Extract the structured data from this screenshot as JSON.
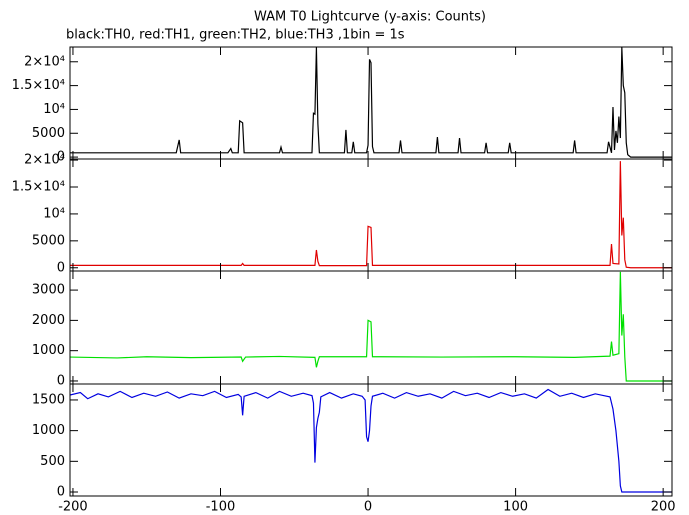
{
  "chart_data": [
    {
      "type": "line",
      "title": "WAM T0 Lightcurve (y-axis: Counts)",
      "subtitle": "black:TH0, red:TH1, green:TH2, blue:TH3 ,1bin = 1s",
      "color": "#000000",
      "x": [
        -202,
        -130,
        -128,
        -127,
        -95,
        -93,
        -92,
        -88,
        -87,
        -85,
        -84,
        -60,
        -59,
        -58,
        -38,
        -37,
        -36,
        -35,
        -34,
        -33,
        -16,
        -15,
        -14,
        -11,
        -10,
        -9,
        -1,
        0,
        1,
        2,
        3,
        4,
        21,
        22,
        23,
        46,
        47,
        48,
        61,
        62,
        63,
        79,
        80,
        81,
        95,
        96,
        97,
        139,
        140,
        141,
        162,
        163,
        165,
        166,
        167,
        168,
        169,
        170,
        171,
        172,
        173,
        174,
        175,
        176,
        178,
        206
      ],
      "values": [
        900,
        900,
        3600,
        900,
        900,
        1800,
        900,
        900,
        7600,
        7200,
        900,
        900,
        2100,
        900,
        900,
        9200,
        9000,
        23000,
        7000,
        900,
        900,
        5700,
        900,
        900,
        3200,
        900,
        900,
        2500,
        20500,
        19800,
        2200,
        900,
        900,
        3500,
        900,
        900,
        4200,
        900,
        900,
        4000,
        900,
        900,
        3000,
        900,
        900,
        3000,
        900,
        900,
        3500,
        900,
        900,
        3200,
        900,
        10500,
        1500,
        5500,
        3000,
        8500,
        4000,
        23000,
        15000,
        13500,
        3000,
        500,
        0,
        0
      ],
      "xlim": [
        -202,
        206
      ],
      "xticks": [
        -200,
        -100,
        0,
        100,
        200
      ],
      "ylim": [
        -400,
        23100
      ],
      "yticks": [
        0,
        5000,
        {
          "value": 10000,
          "label": "10⁴"
        },
        {
          "value": 15000,
          "label": "1.5×10⁴"
        },
        {
          "value": 20000,
          "label": "2×10⁴"
        }
      ]
    },
    {
      "type": "line",
      "color": "#e00000",
      "x": [
        -202,
        -86,
        -85,
        -84,
        -36,
        -35,
        -34,
        -33,
        -1,
        0,
        2,
        3,
        164,
        165,
        166,
        170,
        171,
        172,
        173,
        174,
        175,
        178,
        206
      ],
      "values": [
        450,
        450,
        800,
        450,
        450,
        3300,
        1200,
        400,
        400,
        7700,
        7500,
        450,
        450,
        4400,
        800,
        700,
        19800,
        6000,
        9300,
        1500,
        100,
        0,
        0
      ],
      "xlim": [
        -202,
        206
      ],
      "xticks": [
        -200,
        -100,
        0,
        100,
        200
      ],
      "ylim": [
        -600,
        20200
      ],
      "yticks": [
        0,
        5000,
        {
          "value": 10000,
          "label": "10⁴"
        },
        {
          "value": 15000,
          "label": "1.5×10⁴"
        },
        {
          "value": 20000,
          "label": "2×10⁴"
        }
      ]
    },
    {
      "type": "line",
      "color": "#00e000",
      "x": [
        -202,
        -170,
        -150,
        -120,
        -86,
        -85,
        -84,
        -83,
        -60,
        -36,
        -35,
        -34,
        -33,
        -1,
        0,
        2,
        3,
        50,
        100,
        140,
        164,
        165,
        166,
        170,
        171,
        172,
        173,
        174,
        175,
        206
      ],
      "values": [
        790,
        760,
        800,
        770,
        790,
        650,
        720,
        790,
        810,
        780,
        450,
        650,
        800,
        800,
        2000,
        1950,
        800,
        790,
        800,
        780,
        820,
        1300,
        850,
        900,
        3600,
        1500,
        2200,
        800,
        0,
        0
      ],
      "xlim": [
        -202,
        206
      ],
      "xticks": [
        -200,
        -100,
        0,
        100,
        200
      ],
      "ylim": [
        -100,
        3630
      ],
      "yticks": [
        0,
        1000,
        2000,
        3000
      ]
    },
    {
      "type": "line",
      "color": "#0000e0",
      "x": [
        -202,
        -195,
        -190,
        -183,
        -176,
        -168,
        -160,
        -152,
        -144,
        -136,
        -128,
        -120,
        -112,
        -104,
        -96,
        -88,
        -86,
        -85,
        -84,
        -76,
        -68,
        -60,
        -52,
        -44,
        -38,
        -37,
        -36,
        -35,
        -34,
        -33,
        -32,
        -26,
        -18,
        -10,
        -4,
        -2,
        -1,
        0,
        1,
        2,
        3,
        10,
        18,
        26,
        34,
        42,
        50,
        58,
        66,
        74,
        82,
        90,
        98,
        106,
        114,
        122,
        130,
        138,
        146,
        154,
        160,
        164,
        166,
        168,
        170,
        171,
        172,
        206
      ],
      "values": [
        1580,
        1620,
        1520,
        1600,
        1550,
        1640,
        1540,
        1610,
        1560,
        1630,
        1530,
        1600,
        1570,
        1640,
        1540,
        1590,
        1550,
        1250,
        1560,
        1620,
        1530,
        1640,
        1560,
        1610,
        1570,
        1450,
        480,
        1050,
        1200,
        1300,
        1550,
        1620,
        1530,
        1600,
        1560,
        1500,
        900,
        820,
        1000,
        1400,
        1560,
        1610,
        1530,
        1620,
        1560,
        1600,
        1530,
        1640,
        1570,
        1610,
        1540,
        1620,
        1560,
        1600,
        1530,
        1670,
        1560,
        1610,
        1540,
        1600,
        1570,
        1550,
        1350,
        1000,
        500,
        100,
        0,
        0
      ],
      "xlim": [
        -202,
        206
      ],
      "xticks": [
        -200,
        -100,
        0,
        100,
        200
      ],
      "ylim": [
        -65,
        1760
      ],
      "yticks": [
        0,
        500,
        1000,
        1500
      ]
    }
  ]
}
